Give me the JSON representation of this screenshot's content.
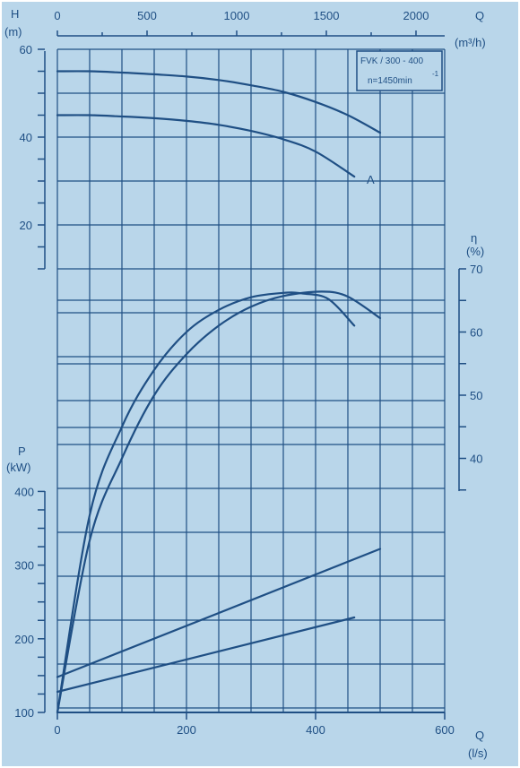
{
  "chart_data": {
    "type": "line",
    "model_label": "FVK / 300 - 400",
    "speed_label": "n=1450min",
    "speed_exponent": "-1",
    "curve_label": "A",
    "axes": {
      "q_ls": {
        "label": "Q",
        "unit": "(l/s)",
        "range": [
          0,
          600
        ],
        "ticks": [
          0,
          200,
          400,
          600
        ]
      },
      "q_m3h": {
        "label": "Q",
        "unit": "(m³/h)",
        "ticks": [
          0,
          500,
          1000,
          1500,
          2000
        ]
      },
      "head": {
        "label": "H",
        "unit": "(m)",
        "range": [
          10,
          60
        ],
        "ticks": [
          20,
          40,
          60
        ]
      },
      "efficiency": {
        "label": "η",
        "unit": "(%)",
        "range": [
          35,
          70
        ],
        "ticks": [
          40,
          50,
          60,
          70
        ]
      },
      "power": {
        "label": "P",
        "unit": "(kW)",
        "range": [
          100,
          400
        ],
        "ticks": [
          100,
          200,
          300,
          400
        ]
      }
    },
    "series": [
      {
        "kind": "head",
        "x": [
          0,
          50,
          100,
          150,
          200,
          250,
          300,
          350,
          400,
          450,
          500
        ],
        "y": [
          55,
          55.0,
          54.7,
          54.3,
          53.8,
          53.0,
          51.8,
          50.3,
          48.0,
          45.0,
          41
        ]
      },
      {
        "kind": "head",
        "label": "A",
        "x": [
          0,
          50,
          100,
          150,
          200,
          250,
          300,
          350,
          400,
          460
        ],
        "y": [
          45,
          45.0,
          44.7,
          44.3,
          43.7,
          42.8,
          41.4,
          39.5,
          36.7,
          31
        ]
      },
      {
        "kind": "efficiency",
        "x": [
          0,
          50,
          100,
          150,
          200,
          250,
          300,
          350,
          380,
          420,
          460
        ],
        "y": [
          0,
          31,
          45,
          54,
          60,
          63.5,
          65.5,
          66.2,
          66.1,
          65.2,
          61
        ]
      },
      {
        "kind": "efficiency",
        "x": [
          0,
          50,
          100,
          150,
          200,
          250,
          300,
          350,
          410,
          450,
          500
        ],
        "y": [
          0,
          27,
          40,
          50,
          56.5,
          61,
          64,
          65.7,
          66.4,
          65.6,
          62.2
        ]
      },
      {
        "kind": "power",
        "x": [
          0,
          500
        ],
        "y": [
          148,
          322
        ]
      },
      {
        "kind": "power",
        "x": [
          0,
          460
        ],
        "y": [
          128,
          229
        ]
      }
    ]
  }
}
